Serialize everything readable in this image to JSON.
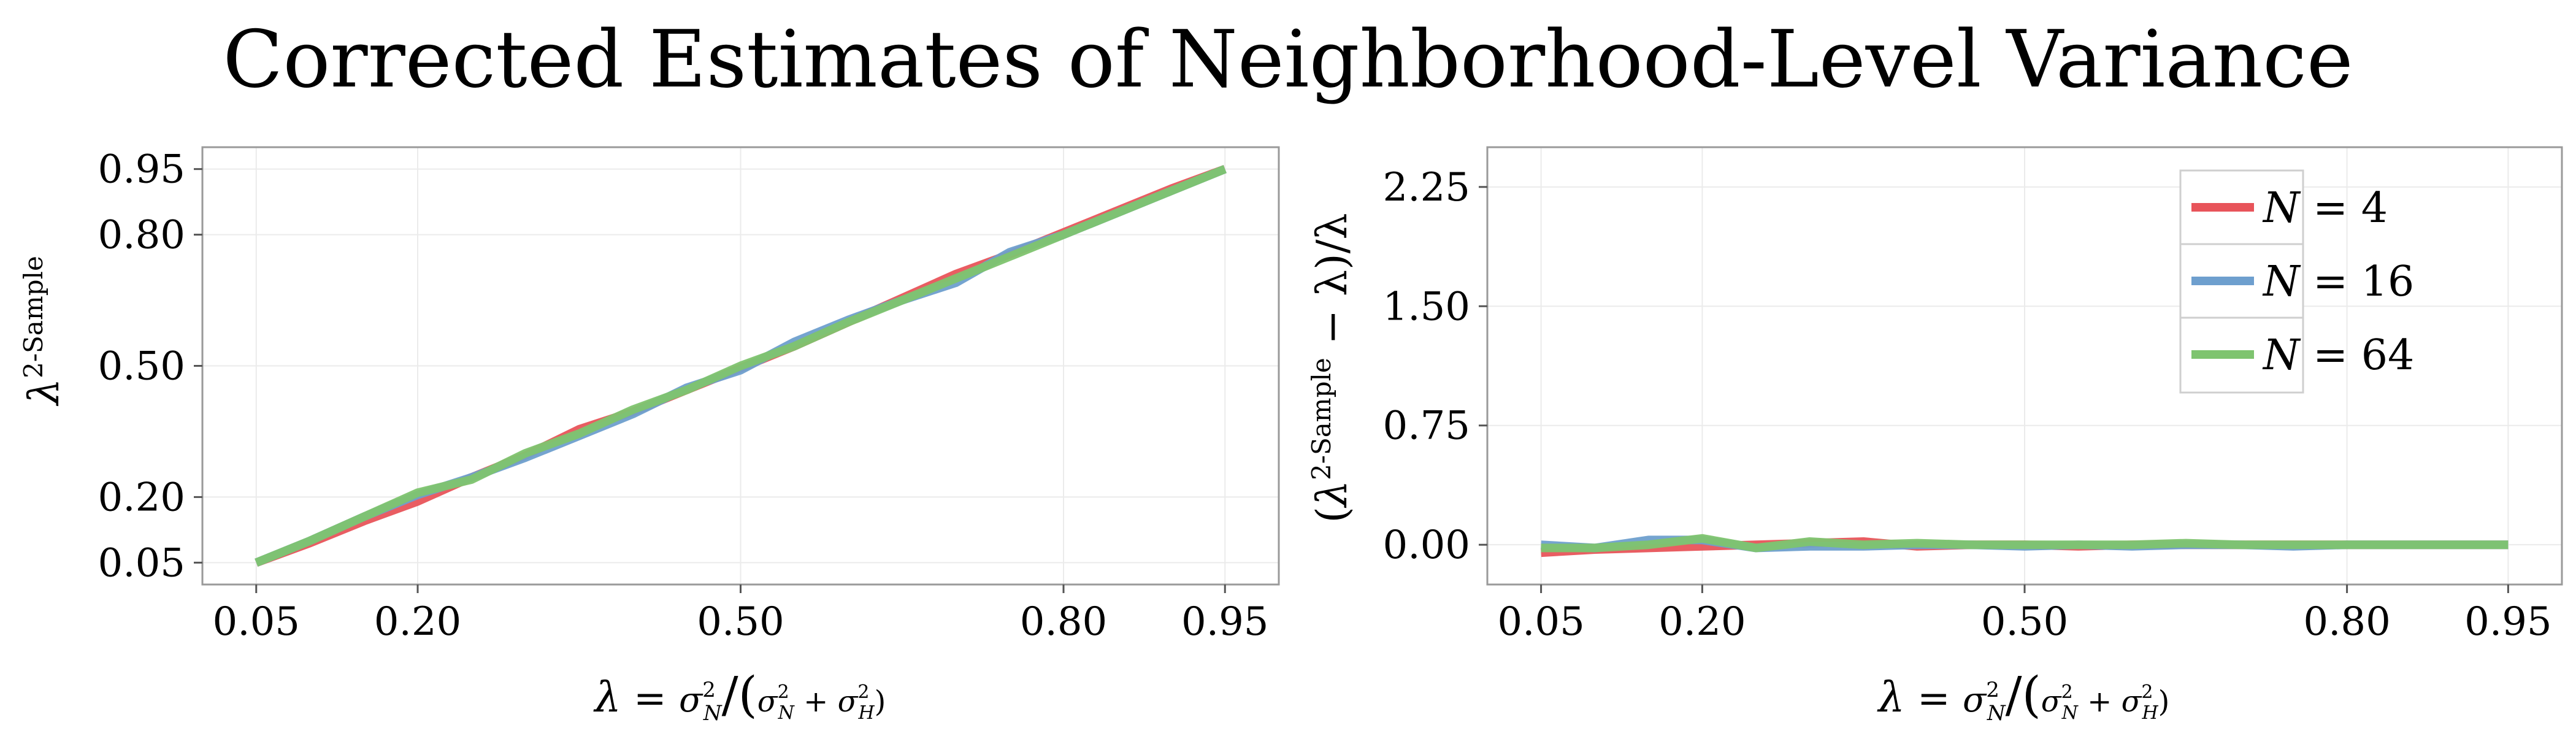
{
  "title": "Corrected Estimates of Neighborhood-Level Variance",
  "colors": {
    "N4": "#E8545A",
    "N16": "#6E9FCE",
    "N64": "#7EC46F",
    "grid": "#EBEBEB",
    "frame": "#9A9A9A"
  },
  "chart_data": [
    {
      "type": "line",
      "xlabel": {
        "lambda": "λ",
        "eq": " = ",
        "sigma": "σ",
        "sub_n": "N",
        "sub_h": "H",
        "sup": "2",
        "plus": " + "
      },
      "ylabel": {
        "lambda": "λ",
        "sup": "2-Sample"
      },
      "xlim": [
        0.0,
        1.0
      ],
      "ylim": [
        0.0,
        1.0
      ],
      "xticks": [
        "0.05",
        "0.20",
        "0.50",
        "0.80",
        "0.95"
      ],
      "yticks": [
        "0.95",
        "0.80",
        "0.50",
        "0.20",
        "0.05"
      ],
      "x": [
        0.05,
        0.1,
        0.15,
        0.2,
        0.25,
        0.3,
        0.35,
        0.4,
        0.45,
        0.5,
        0.55,
        0.6,
        0.65,
        0.7,
        0.75,
        0.8,
        0.85,
        0.9,
        0.95
      ],
      "series": [
        {
          "name": "N = 4",
          "key": "N4",
          "values": [
            0.05,
            0.095,
            0.145,
            0.19,
            0.245,
            0.295,
            0.355,
            0.395,
            0.445,
            0.495,
            0.545,
            0.6,
            0.655,
            0.71,
            0.755,
            0.805,
            0.855,
            0.905,
            0.95
          ]
        },
        {
          "name": "N = 16",
          "key": "N16",
          "values": [
            0.05,
            0.1,
            0.155,
            0.205,
            0.245,
            0.29,
            0.34,
            0.39,
            0.45,
            0.49,
            0.555,
            0.605,
            0.65,
            0.69,
            0.76,
            0.8,
            0.85,
            0.9,
            0.95
          ]
        },
        {
          "name": "N = 64",
          "key": "N64",
          "values": [
            0.05,
            0.1,
            0.155,
            0.21,
            0.24,
            0.3,
            0.345,
            0.4,
            0.445,
            0.5,
            0.545,
            0.6,
            0.65,
            0.7,
            0.75,
            0.8,
            0.85,
            0.9,
            0.95
          ]
        }
      ]
    },
    {
      "type": "line",
      "xlabel": {
        "lambda": "λ",
        "eq": " = ",
        "sigma": "σ",
        "sub_n": "N",
        "sub_h": "H",
        "sup": "2",
        "plus": " + "
      },
      "ylabel": {
        "open": "(",
        "lambda": "λ",
        "sup": "2-Sample",
        "minus": " − λ)/λ"
      },
      "xlim": [
        0.0,
        1.0
      ],
      "ylim": [
        -0.25,
        2.5
      ],
      "xticks": [
        "0.05",
        "0.20",
        "0.50",
        "0.80",
        "0.95"
      ],
      "yticks": [
        "2.25",
        "1.50",
        "0.75",
        "0.00"
      ],
      "legend": {
        "position": "top-right"
      },
      "x": [
        0.05,
        0.1,
        0.15,
        0.2,
        0.25,
        0.3,
        0.35,
        0.4,
        0.45,
        0.5,
        0.55,
        0.6,
        0.65,
        0.7,
        0.75,
        0.8,
        0.85,
        0.9,
        0.95
      ],
      "series": [
        {
          "name": "N = 4",
          "key": "N4",
          "values": [
            -0.05,
            -0.03,
            -0.02,
            -0.01,
            0.0,
            0.01,
            0.02,
            -0.01,
            0.0,
            0.0,
            -0.01,
            0.0,
            0.0,
            0.0,
            0.0,
            0.0,
            0.0,
            0.0,
            0.0
          ]
        },
        {
          "name": "N = 16",
          "key": "N16",
          "values": [
            0.0,
            -0.02,
            0.03,
            0.03,
            -0.02,
            -0.01,
            -0.01,
            0.0,
            0.0,
            -0.01,
            0.0,
            -0.01,
            0.0,
            0.0,
            -0.01,
            0.0,
            0.0,
            0.0,
            0.0
          ]
        },
        {
          "name": "N = 64",
          "key": "N64",
          "values": [
            -0.02,
            -0.02,
            0.0,
            0.04,
            -0.02,
            0.02,
            0.0,
            0.01,
            0.0,
            0.0,
            0.0,
            0.0,
            0.01,
            0.0,
            0.0,
            0.0,
            0.0,
            0.0,
            0.0
          ]
        }
      ]
    }
  ]
}
